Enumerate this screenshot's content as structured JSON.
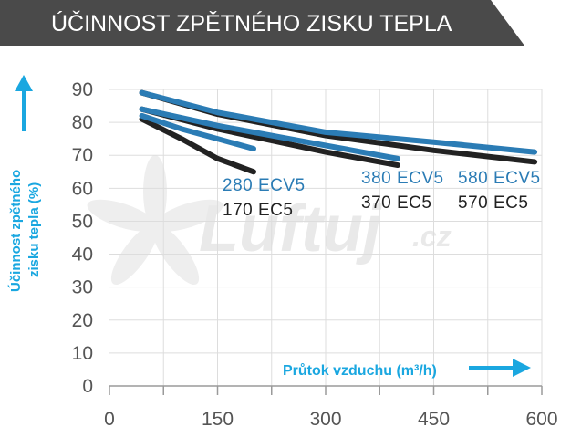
{
  "header": {
    "title": "ÚČINNOST ZPĚTNÉHO ZISKU TEPLA",
    "bg_color": "#4a4a4a"
  },
  "watermark": {
    "brand": "Luftuj",
    "suffix": ".cz"
  },
  "colors": {
    "blue": "#2b7cb5",
    "black": "#222222",
    "accent": "#1aa7e0",
    "grid": "#dddddd"
  },
  "chart_data": {
    "type": "line",
    "title": "ÚČINNOST ZPĚTNÉHO ZISKU TEPLA",
    "xlabel": "Průtok vzduchu (m³/h)",
    "ylabel_lines": [
      "Účinnost zpětného",
      "zisku tepla (%)"
    ],
    "xlim": [
      0,
      600
    ],
    "ylim": [
      0,
      90
    ],
    "x_ticks": [
      "0",
      "150",
      "300",
      "450",
      "600"
    ],
    "y_ticks": [
      "0",
      "10",
      "20",
      "30",
      "40",
      "50",
      "60",
      "70",
      "80",
      "90"
    ],
    "grid": true,
    "series": [
      {
        "name": "580 ECV5",
        "color": "blue",
        "x": [
          45,
          150,
          300,
          450,
          590
        ],
        "y": [
          89,
          83,
          77,
          74,
          71
        ]
      },
      {
        "name": "570 EC5",
        "color": "black",
        "x": [
          45,
          150,
          300,
          450,
          590
        ],
        "y": [
          89,
          82.5,
          76,
          71.5,
          68
        ]
      },
      {
        "name": "380 ECV5",
        "color": "blue",
        "x": [
          45,
          150,
          300,
          400
        ],
        "y": [
          84,
          79,
          73,
          69
        ]
      },
      {
        "name": "370 EC5",
        "color": "black",
        "x": [
          45,
          150,
          300,
          400
        ],
        "y": [
          84,
          78,
          71,
          67
        ]
      },
      {
        "name": "280 ECV5",
        "color": "blue",
        "x": [
          45,
          100,
          150,
          200
        ],
        "y": [
          82,
          78,
          75,
          72
        ]
      },
      {
        "name": "170 EC5",
        "color": "black",
        "x": [
          45,
          100,
          150,
          200
        ],
        "y": [
          81,
          75,
          69,
          65
        ]
      }
    ],
    "series_labels": [
      {
        "text": "280 ECV5",
        "color": "blue"
      },
      {
        "text": "170 EC5",
        "color": "black"
      },
      {
        "text": "380 ECV5",
        "color": "blue"
      },
      {
        "text": "370 EC5",
        "color": "black"
      },
      {
        "text": "580 ECV5",
        "color": "blue"
      },
      {
        "text": "570 EC5",
        "color": "black"
      }
    ]
  }
}
